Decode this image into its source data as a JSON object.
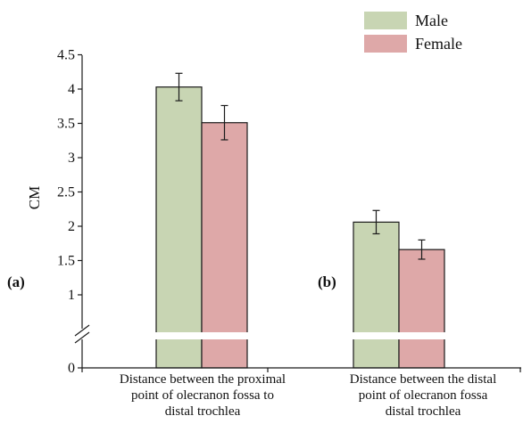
{
  "chart_data": {
    "type": "bar",
    "ylabel": "CM",
    "ylim": [
      0,
      4.5
    ],
    "axis_break": [
      0,
      1
    ],
    "yticks": [
      {
        "value": 0,
        "label": "0"
      },
      {
        "value": 1,
        "label": "1"
      },
      {
        "value": 1.5,
        "label": "1.5"
      },
      {
        "value": 2,
        "label": "2"
      },
      {
        "value": 2.5,
        "label": "2.5"
      },
      {
        "value": 3,
        "label": "3"
      },
      {
        "value": 3.5,
        "label": "3.5"
      },
      {
        "value": 4,
        "label": "4"
      },
      {
        "value": 4.5,
        "label": "4.5"
      }
    ],
    "categories": [
      {
        "panel": "(a)",
        "lines": [
          "Distance between the proximal",
          "point of olecranon fossa to",
          "distal trochlea"
        ]
      },
      {
        "panel": "(b)",
        "lines": [
          "Distance between the distal",
          "point of olecranon fossa",
          "distal trochlea"
        ]
      }
    ],
    "series": [
      {
        "name": "Male",
        "color": "#c8d5b3",
        "values": [
          4.03,
          2.06
        ],
        "errors": [
          0.2,
          0.17
        ]
      },
      {
        "name": "Female",
        "color": "#dea8a8",
        "values": [
          3.51,
          1.66
        ],
        "errors": [
          0.25,
          0.14
        ]
      }
    ],
    "legend_position": "top-right",
    "grid": false
  }
}
